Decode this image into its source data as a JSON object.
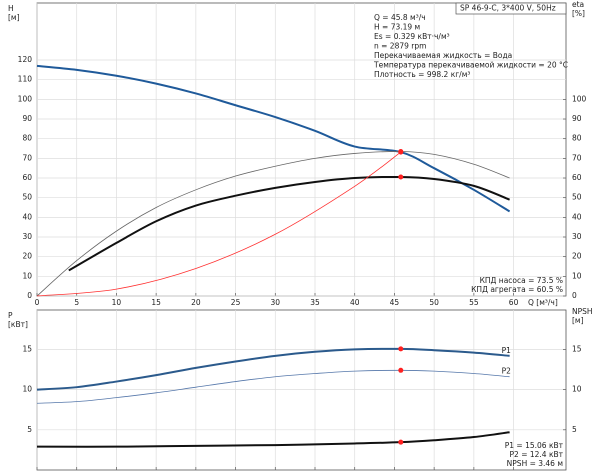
{
  "chart_data": [
    {
      "type": "line",
      "title": "SP 46-9-C, 3*400 V, 50Hz",
      "info": [
        "Q = 45.8 м³/ч",
        "H = 73.19 м",
        "Es = 0.329 кВт·ч/м³",
        "n = 2879 rpm",
        "Перекачиваемая жидкость = Вода",
        "Температура перекачиваемой жидкости = 20 °C",
        "Плотность = 998.2 кг/м³"
      ],
      "notes": [
        "КПД насоса = 73.5 %",
        "КПД агрегата = 60.5 %"
      ],
      "xlabel": "Q [м³/ч]",
      "ylabel": [
        "H",
        "[м]"
      ],
      "y2label": [
        "eta",
        "[%]"
      ],
      "xlim": [
        0,
        66.6
      ],
      "xticks": [
        0,
        5,
        10,
        15,
        20,
        25,
        30,
        35,
        40,
        45,
        50,
        55,
        60
      ],
      "ylim": [
        0,
        149
      ],
      "yticks": [
        0,
        10,
        20,
        30,
        40,
        50,
        60,
        70,
        80,
        90,
        100,
        110,
        120
      ],
      "y2lim": [
        0,
        149
      ],
      "y2ticks": [
        0,
        10,
        20,
        30,
        40,
        50,
        60,
        70,
        80,
        90,
        100
      ],
      "grid": true,
      "series": [
        {
          "color": "#1f5a9a",
          "width": 2,
          "x": [
            0,
            5,
            10,
            15,
            20,
            25,
            30,
            35,
            40,
            45.8,
            50,
            55,
            59.5
          ],
          "values": [
            117,
            115,
            112,
            108,
            103,
            97,
            91,
            84,
            76,
            73.19,
            65,
            54,
            43
          ]
        },
        {
          "color": "#666666",
          "width": 0.8,
          "axis": "y2",
          "x": [
            0,
            5,
            10,
            15,
            20,
            25,
            30,
            35,
            40,
            45.8,
            50,
            55,
            59.5
          ],
          "values": [
            0,
            18,
            33,
            45,
            54,
            61,
            66,
            70,
            72.5,
            73.5,
            72,
            67,
            60
          ]
        },
        {
          "color": "#111111",
          "width": 2,
          "axis": "y2",
          "x": [
            4,
            10,
            15,
            20,
            25,
            30,
            35,
            40,
            45.8,
            50,
            55,
            59.5
          ],
          "values": [
            13,
            27,
            38,
            46,
            51,
            55,
            58,
            60,
            60.5,
            59.5,
            56,
            49
          ]
        },
        {
          "color": "#ff3030",
          "width": 0.8,
          "x": [
            0,
            10,
            20,
            30,
            40,
            45.8
          ],
          "values": [
            0,
            3.5,
            14,
            31.4,
            55.8,
            73.19
          ]
        }
      ],
      "points": [
        {
          "x": 45.8,
          "y": 73.19,
          "color": "#ff2020"
        },
        {
          "x": 45.8,
          "y": 73.5,
          "axis": "y2",
          "color": "#ff2020"
        },
        {
          "x": 45.8,
          "y": 60.5,
          "axis": "y2",
          "color": "#ff2020"
        }
      ]
    },
    {
      "type": "line",
      "notes": [
        "P1 = 15.06 кВт",
        "P2 = 12.4 кВт",
        "NPSH = 3.46 м"
      ],
      "ylabel": [
        "P",
        "[кВт]"
      ],
      "y2label": [
        "NPSH",
        "[м]"
      ],
      "xlim": [
        0,
        66.6
      ],
      "xticks": [
        0,
        5,
        10,
        15,
        20,
        25,
        30,
        35,
        40,
        45,
        50,
        55,
        60
      ],
      "ylim": [
        0,
        19.9
      ],
      "yticks": [
        5,
        10,
        15
      ],
      "y2lim": [
        0,
        19.9
      ],
      "y2ticks": [
        5,
        10,
        15
      ],
      "grid": true,
      "series": [
        {
          "name": "P1",
          "color": "#2b5a8c",
          "width": 2,
          "x": [
            0,
            5,
            10,
            15,
            20,
            25,
            30,
            35,
            40,
            45.8,
            50,
            55,
            59.5
          ],
          "values": [
            10,
            10.3,
            11,
            11.8,
            12.7,
            13.5,
            14.2,
            14.7,
            15,
            15.06,
            14.9,
            14.6,
            14.2
          ]
        },
        {
          "name": "P2",
          "color": "#5577aa",
          "width": 0.8,
          "x": [
            0,
            5,
            10,
            15,
            20,
            25,
            30,
            35,
            40,
            45.8,
            50,
            55,
            59.5
          ],
          "values": [
            8.3,
            8.5,
            9,
            9.6,
            10.3,
            11,
            11.6,
            12,
            12.3,
            12.4,
            12.3,
            12,
            11.6
          ]
        },
        {
          "color": "#111111",
          "width": 2,
          "axis": "y2",
          "x": [
            0,
            10,
            20,
            30,
            40,
            45.8,
            50,
            55,
            59.5
          ],
          "values": [
            2.9,
            2.9,
            3.0,
            3.1,
            3.3,
            3.46,
            3.7,
            4.1,
            4.7
          ]
        }
      ],
      "points": [
        {
          "x": 45.8,
          "y": 15.06,
          "color": "#ff2020"
        },
        {
          "x": 45.8,
          "y": 12.4,
          "color": "#ff2020"
        },
        {
          "x": 45.8,
          "y": 3.46,
          "axis": "y2",
          "color": "#ff2020"
        }
      ]
    }
  ]
}
